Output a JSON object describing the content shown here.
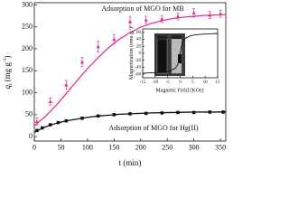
{
  "chart_data": [
    {
      "type": "scatter",
      "x_label": "t (min)",
      "y_label": {
        "symbol": "q",
        "subscript": "t",
        "unit": "(mg g",
        "superscript": "-1",
        "close": ")"
      },
      "annotations": [
        "Adsorption of MGO for MB",
        "Adsorption of MGO for Hg(II)"
      ],
      "xlim": [
        0,
        360
      ],
      "ylim": [
        -10,
        305
      ],
      "xticks": [
        0,
        50,
        100,
        150,
        200,
        250,
        300,
        350
      ],
      "yticks": [
        0,
        50,
        100,
        150,
        200,
        250,
        300
      ],
      "series": [
        {
          "color": "#e0339a",
          "marker": "triangle",
          "x": [
            5,
            30,
            60,
            90,
            120,
            150,
            180,
            210,
            240,
            270,
            300,
            330,
            350
          ],
          "values": [
            35,
            80,
            118,
            170,
            205,
            222,
            262,
            266,
            268,
            274,
            282,
            277,
            280
          ],
          "errors": [
            8,
            8,
            10,
            10,
            12,
            10,
            12,
            8,
            8,
            8,
            10,
            8,
            8
          ]
        },
        {
          "color": "#e0339a",
          "marker": "line",
          "x": [
            0,
            20,
            40,
            60,
            80,
            100,
            120,
            140,
            160,
            180,
            200,
            220,
            240,
            260,
            280,
            300,
            320,
            340,
            360
          ],
          "values": [
            25,
            45,
            70,
            98,
            127,
            155,
            180,
            203,
            222,
            237,
            249,
            258,
            264,
            269,
            272,
            274,
            276,
            277,
            278
          ]
        },
        {
          "color": "#111111",
          "marker": "square",
          "x": [
            5,
            15,
            30,
            45,
            60,
            90,
            120,
            150,
            180,
            210,
            240,
            270,
            300,
            330,
            355
          ],
          "values": [
            14,
            20,
            27,
            32,
            36,
            42,
            47,
            50,
            52,
            53,
            54,
            55,
            55,
            56,
            56
          ]
        },
        {
          "color": "#111111",
          "marker": "line",
          "x": [
            0,
            20,
            40,
            60,
            80,
            100,
            120,
            140,
            160,
            180,
            200,
            220,
            240,
            260,
            280,
            300,
            320,
            340,
            360
          ],
          "values": [
            10,
            22,
            30,
            36,
            40,
            44,
            47,
            49,
            51,
            52,
            53,
            54,
            54.5,
            55,
            55.5,
            56,
            56,
            56,
            56.5
          ]
        }
      ]
    },
    {
      "type": "line",
      "x_label": "Magnetic Field (KOe)",
      "y_label": {
        "unit": "Magnetization (emu g",
        "superscript": "-1",
        "close": ")"
      },
      "xlim": [
        -15,
        15
      ],
      "ylim": [
        -70,
        70
      ],
      "xticks": [
        -15,
        -10,
        -5,
        0,
        5,
        10,
        15
      ],
      "yticks": [
        -60,
        -40,
        -20,
        0,
        20,
        40,
        60
      ],
      "series": [
        {
          "color": "#111111",
          "marker": "line",
          "x": [
            -15,
            -12,
            -9,
            -6,
            -4,
            -2,
            -1,
            -0.5,
            0,
            0.5,
            1,
            2,
            4,
            6,
            9,
            12,
            15
          ],
          "values": [
            -57,
            -56,
            -55,
            -53,
            -50,
            -43,
            -33,
            -20,
            0,
            20,
            33,
            43,
            50,
            53,
            55,
            56,
            57
          ]
        }
      ]
    }
  ]
}
